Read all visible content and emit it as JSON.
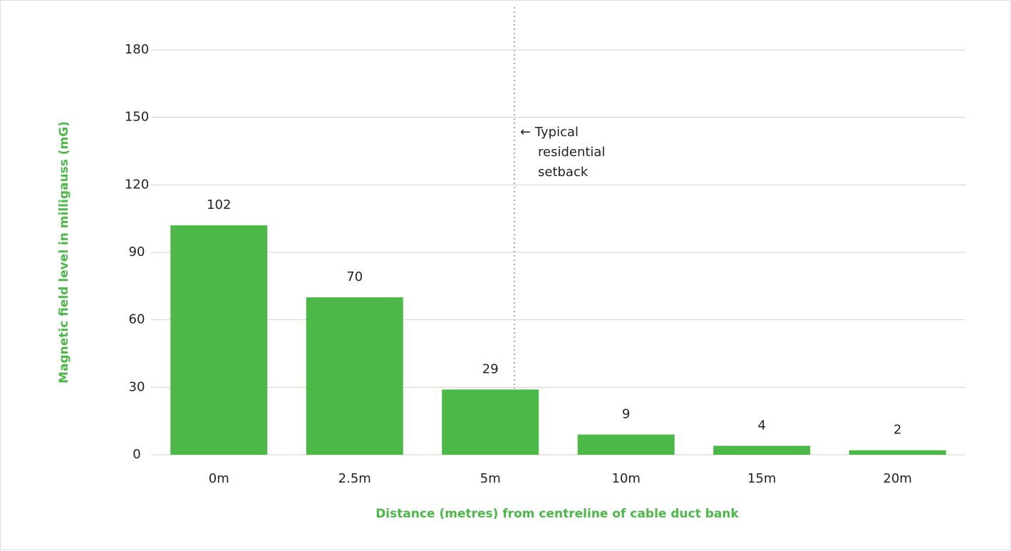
{
  "chart_data": {
    "type": "bar",
    "categories": [
      "0m",
      "2.5m",
      "5m",
      "10m",
      "15m",
      "20m"
    ],
    "values": [
      102,
      70,
      29,
      9,
      4,
      2
    ],
    "color": "#4cb848",
    "ylim": [
      0,
      180
    ],
    "yticks": [
      0,
      30,
      60,
      90,
      120,
      150,
      180
    ],
    "grid": true,
    "y_label": "Magnetic field level in milligauss (mG)",
    "x_label": "Distance (metres) from centreline of cable duct bank",
    "annotation": {
      "lines": [
        "← Typical",
        "residential",
        "setback"
      ]
    }
  }
}
